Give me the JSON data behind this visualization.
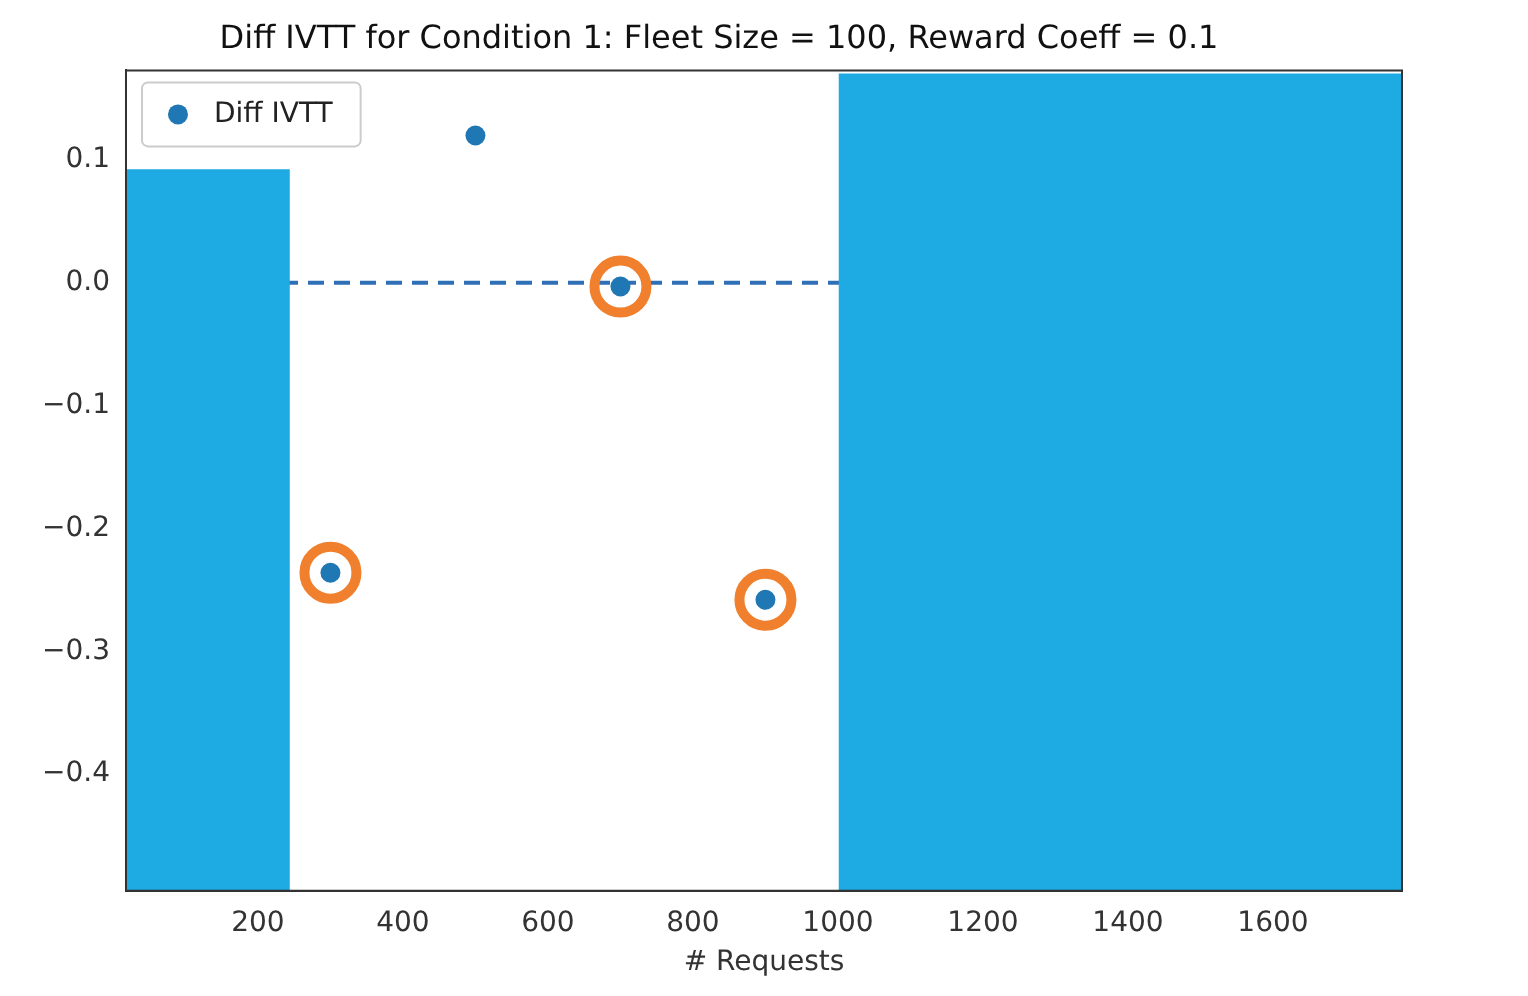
{
  "chart_data": {
    "type": "scatter",
    "title": "Diff IVTT for Condition 1: Fleet Size = 100, Reward Coeff = 0.1",
    "xlabel": "# Requests",
    "series": [
      {
        "type": "bar",
        "color": "#1eaae2",
        "x": [
          130.5,
          1390
        ],
        "base": [
          -0.495,
          -0.495
        ],
        "values": [
          0.587,
          0.665
        ]
      },
      {
        "name": "Diff IVTT",
        "color": "#1f77b4",
        "x": [
          300,
          500,
          700,
          900
        ],
        "values": [
          -0.236,
          0.12,
          -0.003,
          -0.258
        ]
      },
      {
        "color": "#f0802e",
        "x": [
          300,
          700,
          900
        ],
        "values": [
          -0.236,
          -0.003,
          -0.258
        ]
      }
    ],
    "ref_lines": [
      {
        "axis": "y",
        "value": 0,
        "color": "#2f6fb5",
        "line_style": "dashed"
      }
    ],
    "xlim": [
      18,
      1778
    ],
    "ylim": [
      -0.495,
      0.173
    ],
    "xticks": [
      200,
      400,
      600,
      800,
      1000,
      1200,
      1400,
      1600
    ],
    "yticks": [
      -0.4,
      -0.3,
      -0.2,
      -0.1,
      {
        "value": 0,
        "label": "0.0"
      },
      0.1
    ],
    "grid": false,
    "legend": "top left",
    "marker": "circle"
  }
}
